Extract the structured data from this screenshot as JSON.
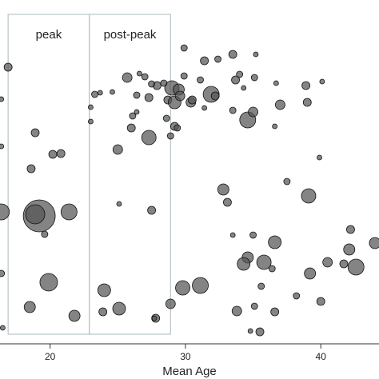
{
  "chart_data": {
    "type": "scatter",
    "x_label": "Mean Age",
    "color": "#555555",
    "grid": false,
    "xlim": [
      16.3,
      44.3
    ],
    "ylim": [
      0,
      43
    ],
    "xticks": [
      20,
      30,
      40
    ],
    "regions": [
      {
        "label": "peak",
        "x": [
          16.9,
          22.9
        ]
      },
      {
        "label": "post-peak",
        "x": [
          22.9,
          28.9
        ]
      }
    ],
    "x": [
      16.9,
      18.9,
      20.2,
      20.8,
      18.6,
      16.4,
      19.2,
      18.9,
      21.4,
      19.6,
      19.9,
      18.5,
      21.8,
      16.4,
      16.4,
      16.4,
      16.5,
      23.3,
      23.7,
      23.0,
      23.0,
      25.0,
      26.0,
      26.1,
      25.7,
      27.3,
      25.1,
      27.5,
      24.0,
      23.9,
      25.1,
      27.8,
      27.7,
      28.9,
      28.6,
      28.7,
      29.0,
      28.4,
      27.9,
      27.5,
      27.0,
      27.3,
      26.4,
      26.6,
      24.6,
      26.4,
      29.2,
      29.2,
      28.9,
      29.4,
      29.5,
      29.6,
      29.9,
      30.4,
      29.9,
      29.8,
      31.1,
      30.5,
      31.1,
      31.4,
      31.9,
      32.2,
      31.4,
      32.4,
      33.5,
      33.7,
      34.0,
      34.3,
      35.1,
      35.2,
      36.7,
      33.5,
      34.6,
      35.0,
      37.0,
      38.9,
      40.1,
      39.0,
      36.6,
      39.9,
      32.8,
      33.1,
      37.5,
      39.1,
      33.5,
      35.0,
      36.6,
      34.6,
      35.8,
      34.3,
      36.4,
      39.2,
      40.5,
      41.7,
      42.6,
      42.1,
      42.2,
      44.0,
      35.6,
      35.1,
      36.6,
      33.8,
      40.0,
      38.2,
      34.8,
      35.5
    ],
    "y": [
      34.6,
      26.4,
      23.7,
      23.8,
      21.9,
      16.5,
      16.0,
      16.2,
      16.5,
      13.7,
      7.7,
      4.6,
      3.5,
      30.6,
      24.7,
      8.8,
      2.0,
      31.2,
      31.4,
      29.6,
      27.8,
      24.3,
      27.0,
      28.5,
      33.3,
      25.8,
      17.5,
      16.7,
      6.7,
      4.0,
      4.4,
      3.2,
      3.2,
      5.0,
      28.2,
      30.5,
      32.0,
      32.6,
      32.3,
      32.5,
      33.4,
      30.8,
      31.1,
      33.8,
      31.5,
      29.0,
      30.2,
      27.2,
      26.0,
      27.0,
      31.8,
      31.0,
      33.5,
      30.2,
      37.0,
      7.0,
      7.3,
      30.5,
      33.0,
      29.5,
      31.2,
      31.0,
      35.4,
      35.6,
      36.2,
      33.0,
      33.7,
      32.0,
      33.3,
      36.2,
      32.6,
      29.2,
      28.0,
      29.0,
      29.9,
      32.3,
      32.8,
      30.2,
      27.2,
      23.3,
      19.3,
      17.7,
      20.3,
      18.5,
      13.6,
      13.6,
      12.7,
      10.8,
      10.2,
      10.0,
      9.4,
      8.8,
      10.2,
      10.0,
      9.6,
      11.8,
      14.3,
      12.6,
      7.2,
      4.7,
      4.0,
      4.1,
      5.3,
      6.0,
      1.6,
      1.5
    ],
    "sizes": [
      5,
      5,
      5,
      5,
      5,
      10,
      20,
      12,
      10,
      4,
      11,
      7,
      7,
      3,
      3,
      4,
      3,
      4,
      3,
      3,
      3,
      6,
      5,
      4,
      6,
      9,
      3,
      5,
      8,
      5,
      8,
      5,
      3,
      6,
      4,
      5,
      9,
      4,
      5,
      4,
      4,
      5,
      4,
      3,
      3,
      3,
      8,
      5,
      4,
      4,
      7,
      6,
      4,
      6,
      4,
      9,
      10,
      5,
      4,
      3,
      10,
      5,
      5,
      4,
      5,
      5,
      4,
      3,
      4,
      3,
      3,
      4,
      10,
      6,
      6,
      5,
      3,
      5,
      3,
      3,
      7,
      5,
      4,
      9,
      3,
      4,
      8,
      7,
      9,
      8,
      4,
      7,
      6,
      5,
      10,
      7,
      5,
      7,
      4,
      4,
      5,
      6,
      5,
      4,
      3,
      5
    ]
  }
}
